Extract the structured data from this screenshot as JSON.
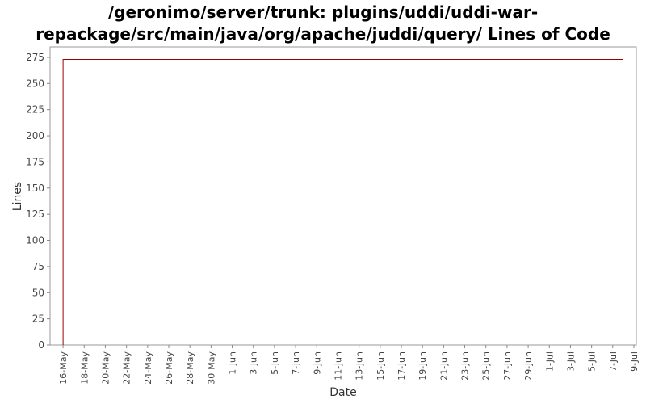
{
  "chart_data": {
    "type": "line",
    "title_line1": "/geronimo/server/trunk: plugins/uddi/uddi-war-",
    "title_line2": "repackage/src/main/java/org/apache/juddi/query/ Lines of Code",
    "xlabel": "Date",
    "ylabel": "Lines",
    "ylim": [
      0,
      285
    ],
    "yticks": [
      0,
      25,
      50,
      75,
      100,
      125,
      150,
      175,
      200,
      225,
      250,
      275
    ],
    "xrange": [
      "2007-05-15",
      "2007-07-09"
    ],
    "xticks": [
      {
        "date": "2007-05-16",
        "label": "16-May"
      },
      {
        "date": "2007-05-18",
        "label": "18-May"
      },
      {
        "date": "2007-05-20",
        "label": "20-May"
      },
      {
        "date": "2007-05-22",
        "label": "22-May"
      },
      {
        "date": "2007-05-24",
        "label": "24-May"
      },
      {
        "date": "2007-05-26",
        "label": "26-May"
      },
      {
        "date": "2007-05-28",
        "label": "28-May"
      },
      {
        "date": "2007-05-30",
        "label": "30-May"
      },
      {
        "date": "2007-06-01",
        "label": "1-Jun"
      },
      {
        "date": "2007-06-03",
        "label": "3-Jun"
      },
      {
        "date": "2007-06-05",
        "label": "5-Jun"
      },
      {
        "date": "2007-06-07",
        "label": "7-Jun"
      },
      {
        "date": "2007-06-09",
        "label": "9-Jun"
      },
      {
        "date": "2007-06-11",
        "label": "11-Jun"
      },
      {
        "date": "2007-06-13",
        "label": "13-Jun"
      },
      {
        "date": "2007-06-15",
        "label": "15-Jun"
      },
      {
        "date": "2007-06-17",
        "label": "17-Jun"
      },
      {
        "date": "2007-06-19",
        "label": "19-Jun"
      },
      {
        "date": "2007-06-21",
        "label": "21-Jun"
      },
      {
        "date": "2007-06-23",
        "label": "23-Jun"
      },
      {
        "date": "2007-06-25",
        "label": "25-Jun"
      },
      {
        "date": "2007-06-27",
        "label": "27-Jun"
      },
      {
        "date": "2007-06-29",
        "label": "29-Jun"
      },
      {
        "date": "2007-07-01",
        "label": "1-Jul"
      },
      {
        "date": "2007-07-03",
        "label": "3-Jul"
      },
      {
        "date": "2007-07-05",
        "label": "5-Jul"
      },
      {
        "date": "2007-07-07",
        "label": "7-Jul"
      },
      {
        "date": "2007-07-09",
        "label": "9-Jul"
      }
    ],
    "series": [
      {
        "color": "#990000",
        "points": [
          {
            "x": "2007-05-16",
            "y": 0
          },
          {
            "x": "2007-05-16",
            "y": 273
          },
          {
            "x": "2007-07-08",
            "y": 273
          }
        ]
      }
    ],
    "grid": false,
    "legend": "none"
  },
  "colors": {
    "axis": "#888888",
    "tick_text": "#444444",
    "label_text": "#333333",
    "line": "#990000"
  }
}
